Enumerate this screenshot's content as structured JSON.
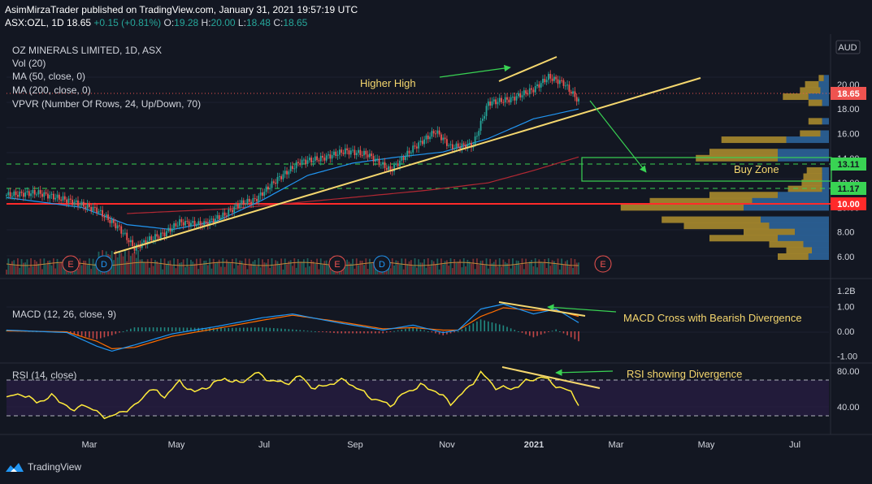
{
  "header": {
    "publisher_line": "AsimMirzaTrader published on TradingView.com, January 31, 2021 19:57:19 UTC",
    "symbol_line": "ASX:OZL, 1D",
    "last": "18.65",
    "change": "+0.15 (+0.81%)",
    "o_label": "O:",
    "o": "19.28",
    "h_label": "H:",
    "h": "20.00",
    "l_label": "L:",
    "l": "18.48",
    "c_label": "C:",
    "c": "18.65"
  },
  "legend": {
    "title": "OZ MINERALS LIMITED, 1D, ASX",
    "vol": "Vol (20)",
    "ma50": "MA (50, close, 0)",
    "ma200": "MA (200, close, 0)",
    "vpvr": "VPVR (Number Of Rows, 24, Up/Down, 70)",
    "currency": "AUD"
  },
  "annotations": {
    "higher_high": "Higher High",
    "buy_zone": "Buy Zone",
    "macd_note": "MACD Cross with Bearish Divergence",
    "rsi_note": "RSI showing Divergence"
  },
  "macd_title": "MACD (12, 26, close, 9)",
  "rsi_title": "RSI (14, close)",
  "earnings_markers": [
    "E",
    "D",
    "E",
    "D",
    "E"
  ],
  "footer_brand": "TradingView",
  "colors": {
    "background": "#131722",
    "up": "#26a69a",
    "down": "#ef5350",
    "trendline": "#f5d76e",
    "ma50": "#2196f3",
    "ma200": "#b22833",
    "annotation_arrow": "#39d353",
    "buy_zone": "#39d353",
    "resistance": "#ff2a2a",
    "rsi": "#ffeb3b",
    "macd": "#2196f3",
    "signal": "#ff6d00"
  },
  "chart_data": [
    {
      "type": "candlestick",
      "title": "OZ MINERALS LIMITED, 1D, ASX",
      "x_ticks": [
        "Mar",
        "May",
        "Jul",
        "Sep",
        "Nov",
        "2021",
        "Mar",
        "May",
        "Jul"
      ],
      "y_ticks": [
        "20.00",
        "18.00",
        "16.00",
        "14.00",
        "12.00",
        "10.00",
        "8.00",
        "6.00"
      ],
      "ylim": [
        5.5,
        21.5
      ],
      "price_labels": [
        "18.65",
        "13.11",
        "11.17",
        "10.00"
      ],
      "volume_scale_label": "1.2B",
      "close_path": [
        [
          0,
          11.0
        ],
        [
          4,
          11.2
        ],
        [
          8,
          10.6
        ],
        [
          12,
          9.8
        ],
        [
          15,
          8.3
        ],
        [
          17,
          6.7
        ],
        [
          19,
          7.4
        ],
        [
          21,
          7.9
        ],
        [
          23,
          8.8
        ],
        [
          26,
          8.6
        ],
        [
          29,
          9.4
        ],
        [
          31,
          10.3
        ],
        [
          33,
          10.6
        ],
        [
          36,
          12.3
        ],
        [
          39,
          13.7
        ],
        [
          42,
          14.0
        ],
        [
          45,
          14.6
        ],
        [
          48,
          14.3
        ],
        [
          51,
          13.0
        ],
        [
          54,
          14.8
        ],
        [
          57,
          16.2
        ],
        [
          59,
          14.9
        ],
        [
          62,
          15.1
        ],
        [
          64,
          18.5
        ],
        [
          67,
          18.8
        ],
        [
          70,
          19.6
        ],
        [
          72,
          20.6
        ],
        [
          74,
          20.1
        ],
        [
          76,
          18.65
        ]
      ],
      "ma50_path": [
        [
          0,
          10.8
        ],
        [
          10,
          10.0
        ],
        [
          16,
          8.6
        ],
        [
          22,
          8.2
        ],
        [
          28,
          8.9
        ],
        [
          34,
          10.6
        ],
        [
          40,
          12.6
        ],
        [
          46,
          13.6
        ],
        [
          52,
          14.1
        ],
        [
          58,
          14.5
        ],
        [
          64,
          15.6
        ],
        [
          70,
          17.2
        ],
        [
          76,
          18.0
        ]
      ],
      "ma200_path": [
        [
          16,
          9.5
        ],
        [
          30,
          9.9
        ],
        [
          44,
          10.7
        ],
        [
          56,
          11.4
        ],
        [
          64,
          12.0
        ],
        [
          70,
          13.0
        ],
        [
          76,
          14.1
        ]
      ],
      "vpvr_rows": [
        {
          "price": 20.5,
          "up": 0.03,
          "down": 0.03
        },
        {
          "price": 20.0,
          "up": 0.08,
          "down": 0.06
        },
        {
          "price": 19.5,
          "up": 0.12,
          "down": 0.05
        },
        {
          "price": 19.0,
          "up": 0.15,
          "down": 0.12
        },
        {
          "price": 18.5,
          "up": 0.08,
          "down": 0.04
        },
        {
          "price": 17.0,
          "up": 0.08,
          "down": 0.04
        },
        {
          "price": 16.0,
          "up": 0.12,
          "down": 0.05
        },
        {
          "price": 15.5,
          "up": 0.38,
          "down": 0.25
        },
        {
          "price": 14.5,
          "up": 0.4,
          "down": 0.3
        },
        {
          "price": 14.0,
          "up": 0.48,
          "down": 0.3
        },
        {
          "price": 13.0,
          "up": 0.09,
          "down": 0.04
        },
        {
          "price": 12.5,
          "up": 0.11,
          "down": 0.04
        },
        {
          "price": 12.0,
          "up": 0.12,
          "down": 0.04
        },
        {
          "price": 11.5,
          "up": 0.2,
          "down": 0.04
        },
        {
          "price": 11.0,
          "up": 0.4,
          "down": 0.3
        },
        {
          "price": 10.5,
          "up": 0.6,
          "down": 0.45
        },
        {
          "price": 10.0,
          "up": 0.72,
          "down": 0.5
        },
        {
          "price": 9.0,
          "up": 0.58,
          "down": 0.4
        },
        {
          "price": 8.5,
          "up": 0.5,
          "down": 0.35
        },
        {
          "price": 8.0,
          "up": 0.3,
          "down": 0.2
        },
        {
          "price": 7.5,
          "up": 0.4,
          "down": 0.3
        },
        {
          "price": 7.0,
          "up": 0.2,
          "down": 0.15
        },
        {
          "price": 6.5,
          "up": 0.15,
          "down": 0.1
        },
        {
          "price": 6.0,
          "up": 0.18,
          "down": 0.12
        }
      ]
    },
    {
      "type": "line",
      "title": "MACD (12, 26, close, 9)",
      "y_ticks": [
        "1.00",
        "0.00",
        "-1.00"
      ],
      "ylim": [
        -1.2,
        1.3
      ],
      "macd_path": [
        [
          0,
          0.05
        ],
        [
          8,
          -0.05
        ],
        [
          12,
          -0.6
        ],
        [
          14,
          -0.8
        ],
        [
          17,
          -0.55
        ],
        [
          22,
          -0.1
        ],
        [
          28,
          0.2
        ],
        [
          34,
          0.55
        ],
        [
          38,
          0.7
        ],
        [
          44,
          0.35
        ],
        [
          50,
          0.05
        ],
        [
          54,
          0.25
        ],
        [
          58,
          -0.05
        ],
        [
          60,
          0.05
        ],
        [
          63,
          0.9
        ],
        [
          66,
          1.1
        ],
        [
          70,
          0.7
        ],
        [
          73,
          0.9
        ],
        [
          76,
          0.35
        ]
      ],
      "signal_path": [
        [
          0,
          0.02
        ],
        [
          8,
          -0.02
        ],
        [
          12,
          -0.4
        ],
        [
          14,
          -0.7
        ],
        [
          17,
          -0.65
        ],
        [
          22,
          -0.2
        ],
        [
          28,
          0.12
        ],
        [
          34,
          0.45
        ],
        [
          38,
          0.65
        ],
        [
          44,
          0.4
        ],
        [
          50,
          0.1
        ],
        [
          54,
          0.15
        ],
        [
          58,
          0.05
        ],
        [
          60,
          0.05
        ],
        [
          63,
          0.6
        ],
        [
          66,
          0.95
        ],
        [
          70,
          0.85
        ],
        [
          73,
          0.85
        ],
        [
          76,
          0.6
        ]
      ]
    },
    {
      "type": "line",
      "title": "RSI (14, close)",
      "y_ticks": [
        "80.00",
        "40.00"
      ],
      "ylim": [
        26,
        86
      ],
      "bands": [
        70,
        30
      ],
      "rsi_path": [
        [
          0,
          50
        ],
        [
          2,
          55
        ],
        [
          4,
          45
        ],
        [
          6,
          52
        ],
        [
          8,
          42
        ],
        [
          9,
          33
        ],
        [
          10,
          45
        ],
        [
          11,
          38
        ],
        [
          13,
          30
        ],
        [
          14,
          28
        ],
        [
          15,
          34
        ],
        [
          17,
          40
        ],
        [
          19,
          60
        ],
        [
          21,
          52
        ],
        [
          23,
          68
        ],
        [
          25,
          56
        ],
        [
          27,
          64
        ],
        [
          29,
          72
        ],
        [
          31,
          66
        ],
        [
          33,
          78
        ],
        [
          35,
          70
        ],
        [
          37,
          66
        ],
        [
          39,
          74
        ],
        [
          41,
          60
        ],
        [
          43,
          66
        ],
        [
          45,
          70
        ],
        [
          47,
          58
        ],
        [
          49,
          48
        ],
        [
          51,
          42
        ],
        [
          53,
          56
        ],
        [
          55,
          64
        ],
        [
          57,
          58
        ],
        [
          59,
          44
        ],
        [
          61,
          58
        ],
        [
          63,
          78
        ],
        [
          65,
          62
        ],
        [
          67,
          60
        ],
        [
          69,
          68
        ],
        [
          71,
          74
        ],
        [
          73,
          64
        ],
        [
          75,
          56
        ],
        [
          76,
          44
        ]
      ]
    }
  ]
}
